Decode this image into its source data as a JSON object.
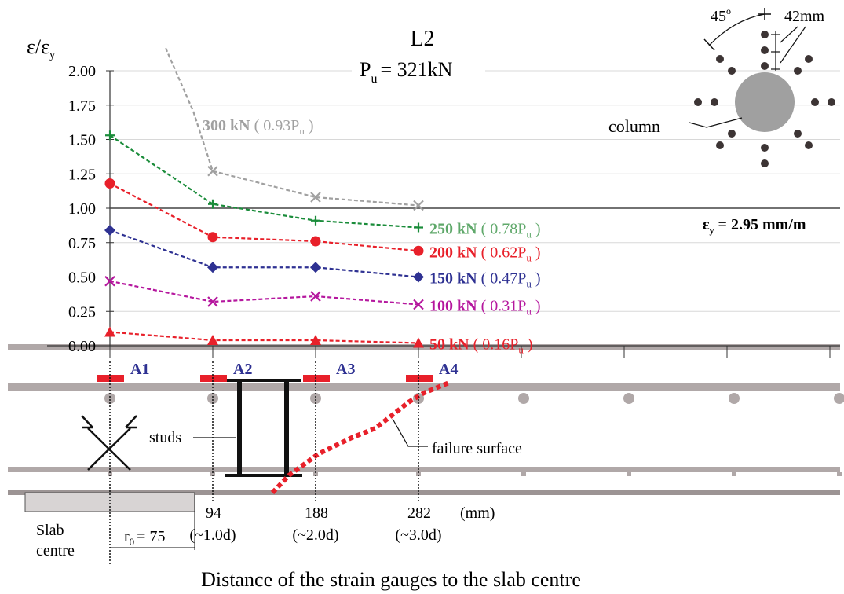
{
  "chart_data": {
    "type": "line",
    "title": "L2",
    "subtitle": {
      "main": "P",
      "sub": "u",
      "rest": "= 321kN"
    },
    "ylabel": {
      "main": "ε/ε",
      "sub": "y"
    },
    "xlabel": "Distance of the strain gauges to the slab centre",
    "x_unit": "(mm)",
    "ylim": [
      0,
      2.0
    ],
    "yticks": [
      "0.00",
      "0.25",
      "0.50",
      "0.75",
      "1.00",
      "1.25",
      "1.50",
      "1.75",
      "2.00"
    ],
    "grid": true,
    "yield_line": {
      "y": 1.0,
      "label_main": "ε",
      "label_sub": "y",
      "label_rest": " = 2.95 mm/m"
    },
    "x_positions": [
      {
        "x": 0,
        "name": "A1"
      },
      {
        "x": 94,
        "name": "A2",
        "tick": "94",
        "approx": "(~1.0d)"
      },
      {
        "x": 188,
        "name": "A3",
        "tick": "188",
        "approx": "(~2.0d)"
      },
      {
        "x": 282,
        "name": "A4",
        "tick": "282",
        "approx": "(~3.0d)"
      }
    ],
    "series": [
      {
        "load": "300 kN",
        "ratio": "0.93P",
        "ratio_sub": "u",
        "color": "#a0a0a0",
        "marker": "x",
        "x": [
          94,
          188,
          282
        ],
        "values": [
          1.27,
          1.08,
          1.02
        ],
        "lead_in": 2.3
      },
      {
        "load": "250 kN",
        "ratio": "0.78P",
        "ratio_sub": "u",
        "color": "#1a8c3a",
        "label_color": "#5fa86a",
        "marker": "plus",
        "x": [
          0,
          94,
          188,
          282
        ],
        "values": [
          1.53,
          1.03,
          0.91,
          0.86
        ]
      },
      {
        "load": "200 kN",
        "ratio": "0.62P",
        "ratio_sub": "u",
        "color": "#e8202a",
        "marker": "circle",
        "x": [
          0,
          94,
          188,
          282
        ],
        "values": [
          1.18,
          0.79,
          0.76,
          0.69
        ]
      },
      {
        "load": "150 kN",
        "ratio": "0.47P",
        "ratio_sub": "u",
        "color": "#2e3192",
        "marker": "diamond",
        "x": [
          0,
          94,
          188,
          282
        ],
        "values": [
          0.84,
          0.57,
          0.57,
          0.5
        ]
      },
      {
        "load": "100 kN",
        "ratio": "0.31P",
        "ratio_sub": "u",
        "color": "#b5179e",
        "marker": "x",
        "x": [
          0,
          94,
          188,
          282
        ],
        "values": [
          0.47,
          0.32,
          0.36,
          0.3
        ]
      },
      {
        "load": "50 kN",
        "ratio": "0.16P",
        "ratio_sub": "u",
        "color": "#e8202a",
        "marker": "triangle",
        "x": [
          0,
          94,
          188,
          282
        ],
        "values": [
          0.1,
          0.04,
          0.04,
          0.02
        ]
      }
    ]
  },
  "diagram": {
    "studs_label": "studs",
    "failure_label": "failure surface",
    "slab_centre_line1": "Slab",
    "slab_centre_line2": "centre",
    "r0_main": "r",
    "r0_sub": "0",
    "r0_rest": "= 75",
    "column_label": "column",
    "angle_label": "45",
    "angle_sup": "o",
    "spacing_label": "42mm"
  },
  "colors": {
    "gauge": "#e8202a",
    "gauge_label": "#2e3192",
    "rebar": "#b0a8a8",
    "failure": "#e8202a",
    "column": "#a0a0a0",
    "studs_dots": "#3c3434"
  }
}
